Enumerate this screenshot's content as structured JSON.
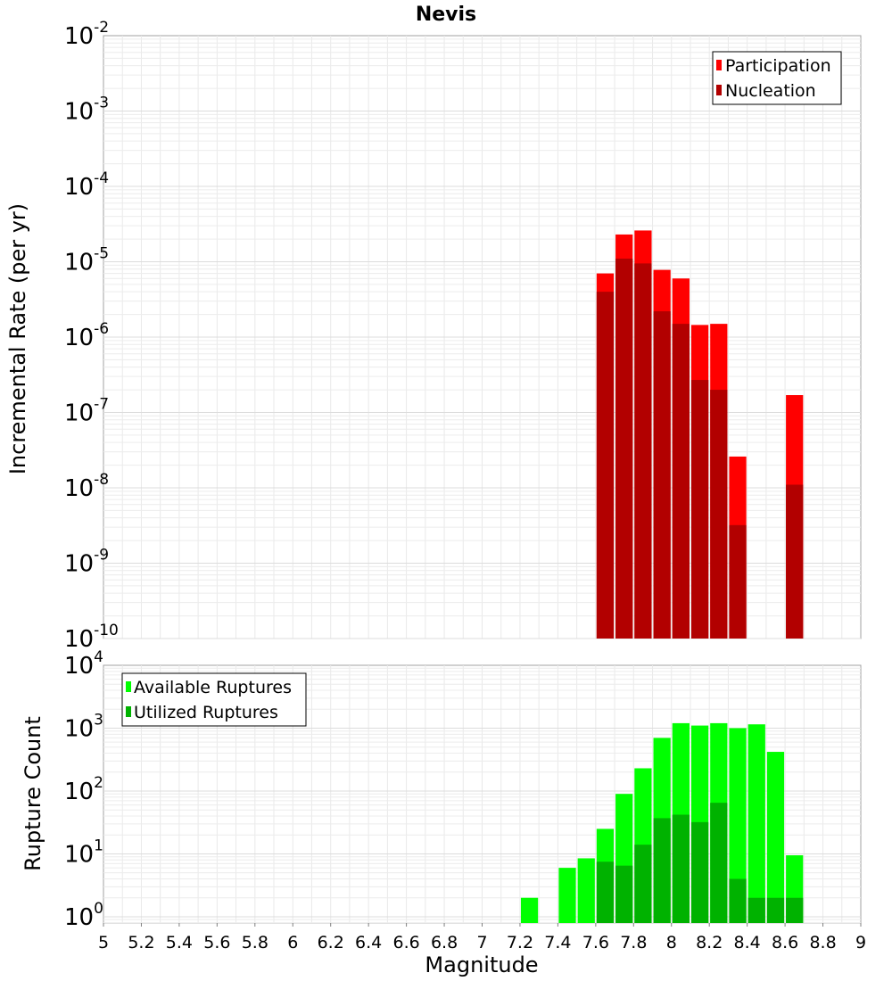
{
  "chart_data": [
    {
      "id": "rate",
      "type": "bar",
      "title": "Nevis",
      "xlabel": "",
      "ylabel": "Incremental Rate (per yr)",
      "yscale": "log",
      "xlim": [
        5,
        9
      ],
      "ylim_exp": [
        -10,
        -2
      ],
      "y_tick_exponents": [
        "-10",
        "-9",
        "-8",
        "-7",
        "-6",
        "-5",
        "-4",
        "-3",
        "-2"
      ],
      "bin_width": 0.1,
      "legend_position": "top-right",
      "series": [
        {
          "name": "Participation",
          "color": "#ff0000",
          "points": [
            {
              "x": 7.65,
              "y": 7e-06
            },
            {
              "x": 7.75,
              "y": 2.3e-05
            },
            {
              "x": 7.85,
              "y": 2.6e-05
            },
            {
              "x": 7.95,
              "y": 7.8e-06
            },
            {
              "x": 8.05,
              "y": 6e-06
            },
            {
              "x": 8.15,
              "y": 1.45e-06
            },
            {
              "x": 8.25,
              "y": 1.5e-06
            },
            {
              "x": 8.35,
              "y": 2.6e-08
            },
            {
              "x": 8.65,
              "y": 1.7e-07
            }
          ]
        },
        {
          "name": "Nucleation",
          "color": "#b20000",
          "points": [
            {
              "x": 7.65,
              "y": 4e-06
            },
            {
              "x": 7.75,
              "y": 1.1e-05
            },
            {
              "x": 7.85,
              "y": 9.5e-06
            },
            {
              "x": 7.95,
              "y": 2.2e-06
            },
            {
              "x": 8.05,
              "y": 1.5e-06
            },
            {
              "x": 8.15,
              "y": 2.7e-07
            },
            {
              "x": 8.25,
              "y": 2e-07
            },
            {
              "x": 8.35,
              "y": 3.2e-09
            },
            {
              "x": 8.65,
              "y": 1.1e-08
            }
          ]
        }
      ]
    },
    {
      "id": "count",
      "type": "bar",
      "title": "",
      "xlabel": "Magnitude",
      "ylabel": "Rupture Count",
      "yscale": "log",
      "xlim": [
        5,
        9
      ],
      "ylim_exp": [
        -0.1,
        4
      ],
      "y_tick_exponents": [
        "0",
        "1",
        "2",
        "3",
        "4"
      ],
      "x_ticks": [
        "5",
        "5.2",
        "5.4",
        "5.6",
        "5.8",
        "6",
        "6.2",
        "6.4",
        "6.6",
        "6.8",
        "7",
        "7.2",
        "7.4",
        "7.6",
        "7.8",
        "8",
        "8.2",
        "8.4",
        "8.6",
        "8.8",
        "9"
      ],
      "bin_width": 0.1,
      "legend_position": "top-left",
      "series": [
        {
          "name": "Available Ruptures",
          "color": "#00ff00",
          "points": [
            {
              "x": 7.25,
              "y": 2
            },
            {
              "x": 7.45,
              "y": 6
            },
            {
              "x": 7.55,
              "y": 8.5
            },
            {
              "x": 7.65,
              "y": 25
            },
            {
              "x": 7.75,
              "y": 90
            },
            {
              "x": 7.85,
              "y": 230
            },
            {
              "x": 7.95,
              "y": 700
            },
            {
              "x": 8.05,
              "y": 1200
            },
            {
              "x": 8.15,
              "y": 1100
            },
            {
              "x": 8.25,
              "y": 1200
            },
            {
              "x": 8.35,
              "y": 1000
            },
            {
              "x": 8.45,
              "y": 1150
            },
            {
              "x": 8.55,
              "y": 420
            },
            {
              "x": 8.65,
              "y": 9.5
            }
          ]
        },
        {
          "name": "Utilized Ruptures",
          "color": "#00b200",
          "points": [
            {
              "x": 7.65,
              "y": 7.5
            },
            {
              "x": 7.75,
              "y": 6.5
            },
            {
              "x": 7.85,
              "y": 14
            },
            {
              "x": 7.95,
              "y": 37
            },
            {
              "x": 8.05,
              "y": 42
            },
            {
              "x": 8.15,
              "y": 32
            },
            {
              "x": 8.25,
              "y": 65
            },
            {
              "x": 8.35,
              "y": 4
            },
            {
              "x": 8.45,
              "y": 2
            },
            {
              "x": 8.55,
              "y": 2
            },
            {
              "x": 8.65,
              "y": 2
            }
          ]
        }
      ]
    }
  ]
}
